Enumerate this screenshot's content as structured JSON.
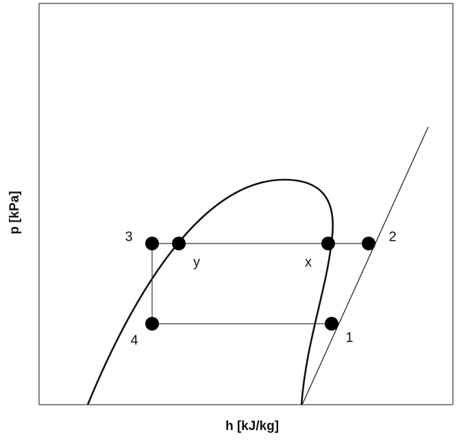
{
  "axes": {
    "x_label": "h [kJ/kg]",
    "y_label": "p [kPa]"
  },
  "points": [
    {
      "label": "1"
    },
    {
      "label": "2"
    },
    {
      "label": "3"
    },
    {
      "label": "4"
    },
    {
      "label": "x"
    },
    {
      "label": "y"
    }
  ]
}
